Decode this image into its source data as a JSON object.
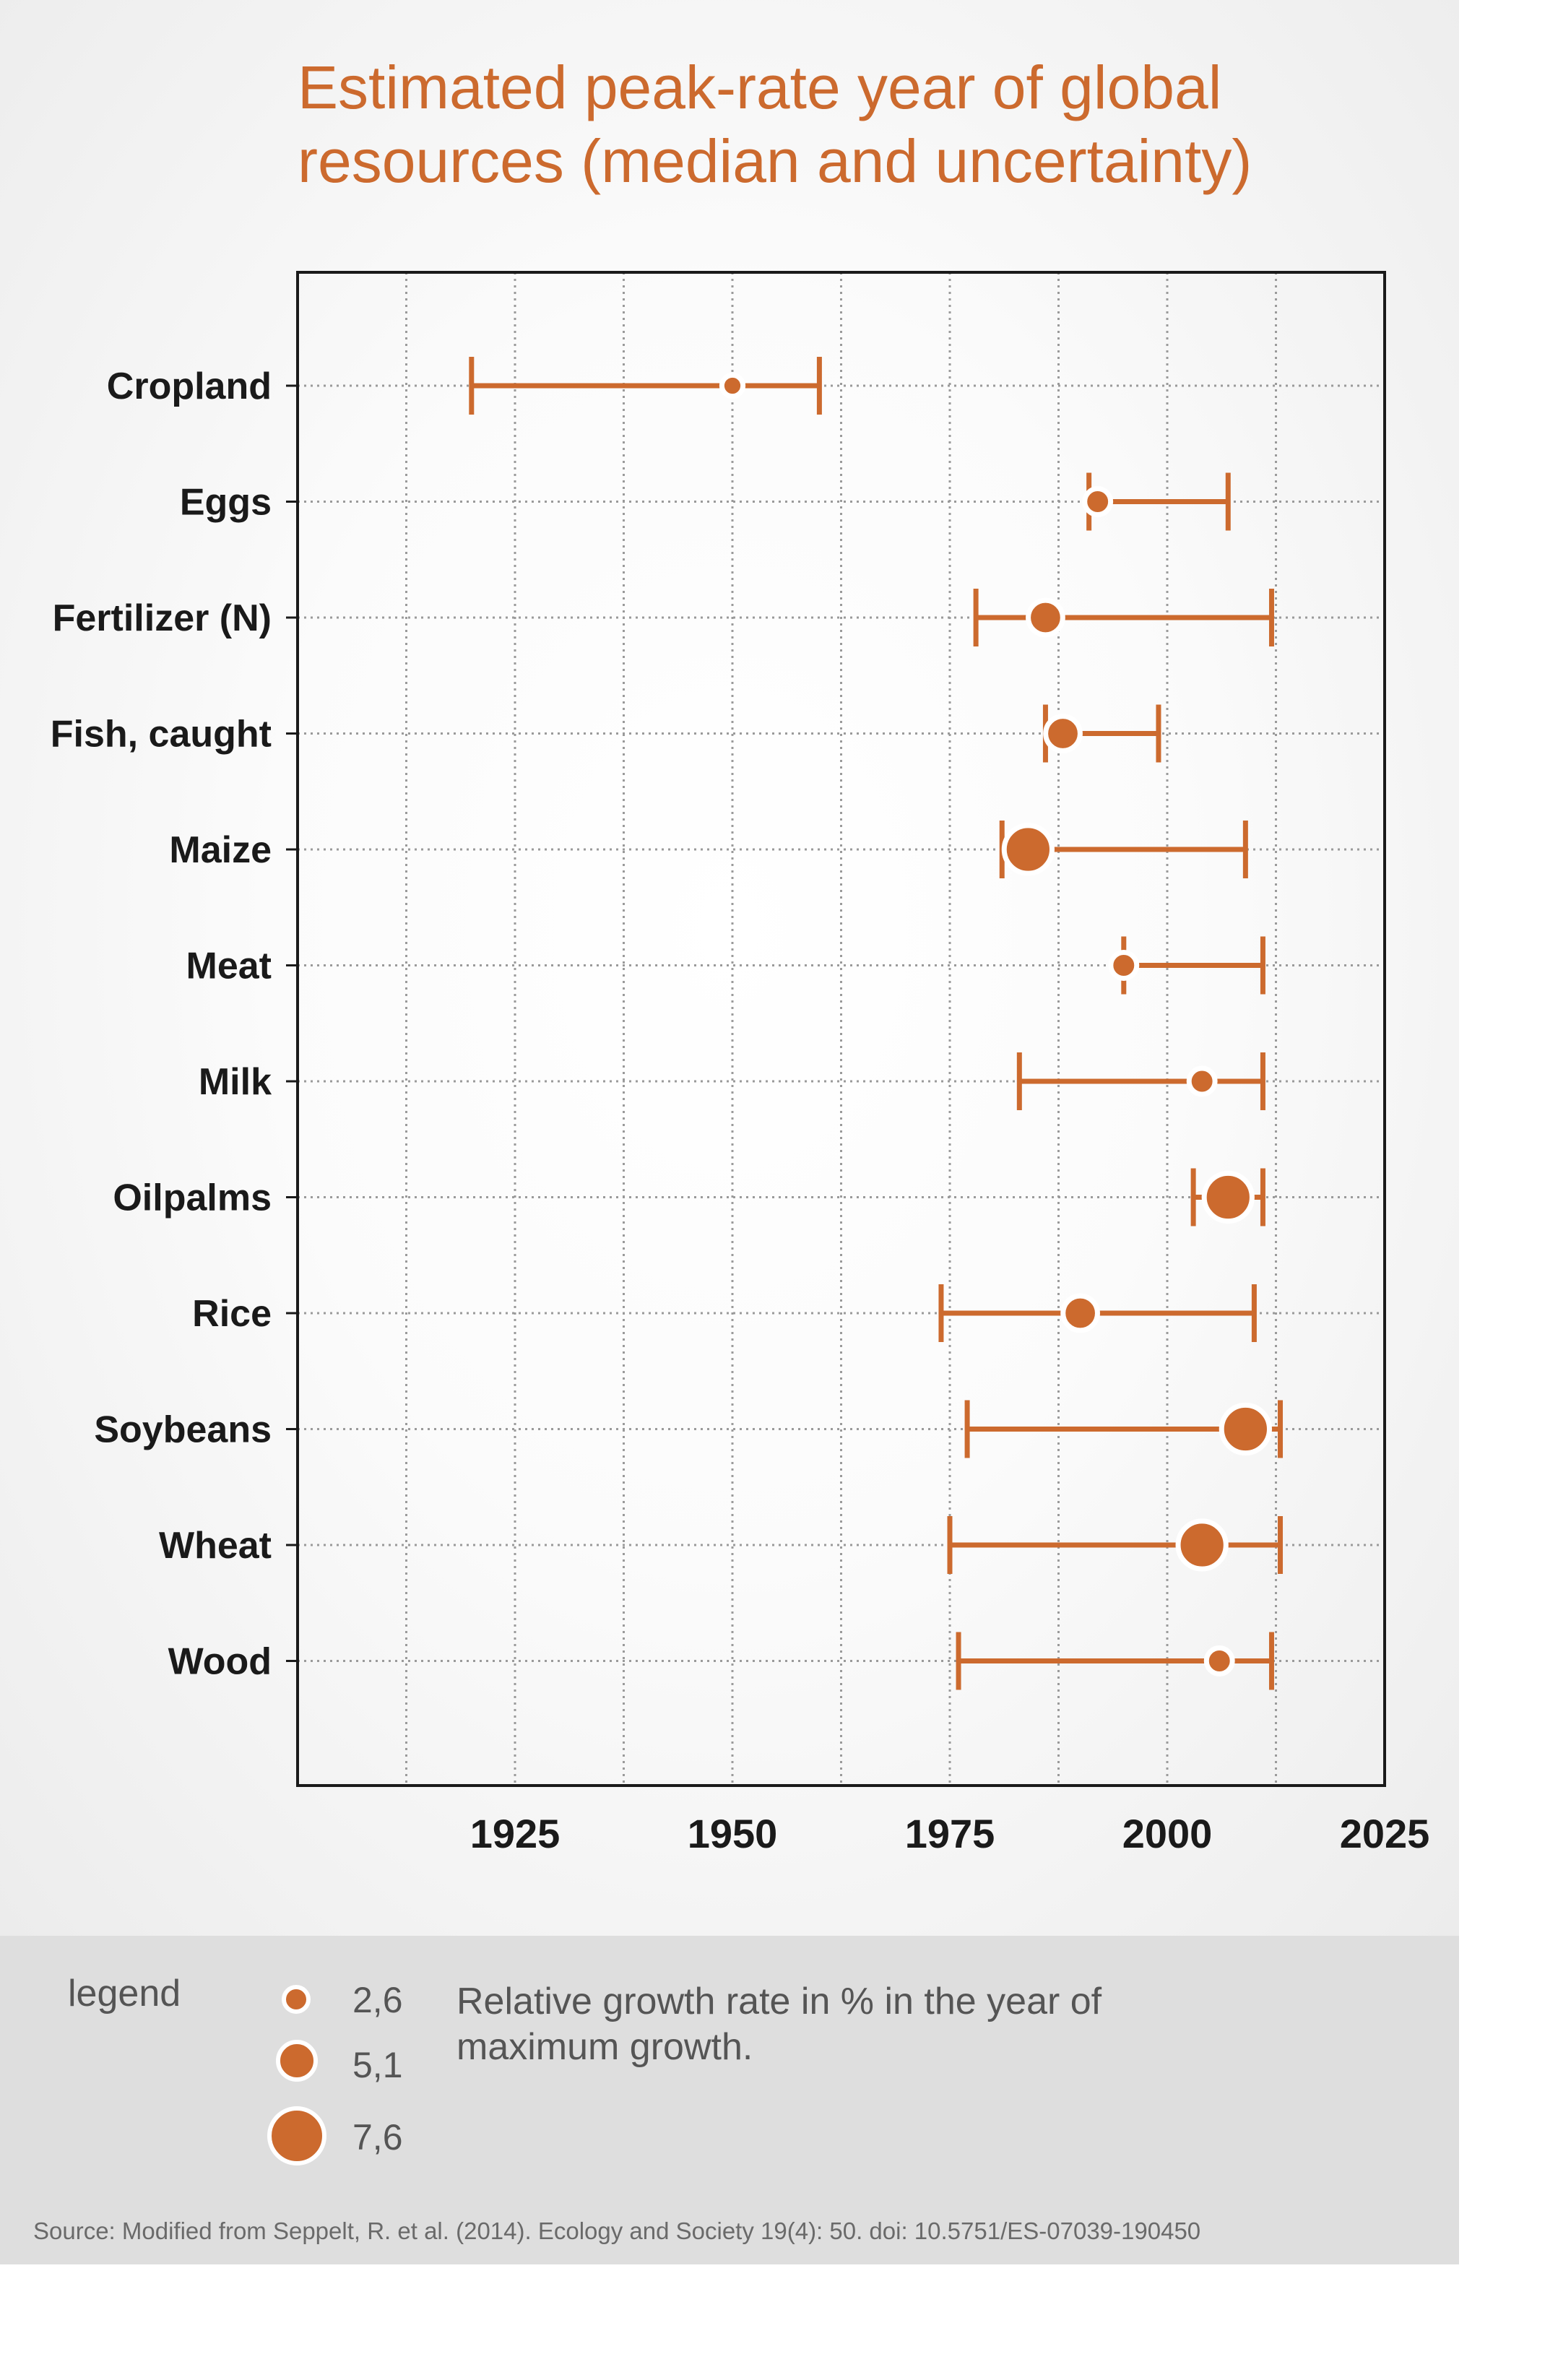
{
  "title": "Estimated peak-rate year of global resources (median and uncertainty)",
  "chart_data": {
    "type": "scatter",
    "title": "Estimated peak-rate year of global resources (median and uncertainty)",
    "xlabel": "",
    "ylabel": "",
    "xlim": [
      1900,
      2025
    ],
    "x_ticks": [
      1925,
      1950,
      1975,
      2000,
      2025
    ],
    "x_tick_labels": [
      "1925",
      "1950",
      "1975",
      "2000",
      "2025"
    ],
    "x_minor_grid": [
      1912.5,
      1925,
      1937.5,
      1950,
      1962.5,
      1975,
      1987.5,
      2000,
      2012.5
    ],
    "grid": true,
    "color": "#cc6a2e",
    "categories": [
      "Cropland",
      "Eggs",
      "Fertilizer (N)",
      "Fish, caught",
      "Maize",
      "Meat",
      "Milk",
      "Oilpalms",
      "Rice",
      "Soybeans",
      "Wheat",
      "Wood"
    ],
    "median": [
      1950,
      1992,
      1986,
      1988,
      1984,
      1995,
      2004,
      2007,
      1990,
      2009,
      2004,
      2006
    ],
    "lower": [
      1920,
      1991,
      1978,
      1986,
      1981,
      1995,
      1983,
      2003,
      1974,
      1977,
      1975,
      1976
    ],
    "upper": [
      1960,
      2007,
      2012,
      1999,
      2009,
      2011,
      2011,
      2011,
      2010,
      2013,
      2013,
      2012
    ],
    "growth_rate": [
      2.6,
      3.5,
      5.1,
      5.1,
      7.6,
      3.5,
      3.5,
      7.6,
      5.1,
      7.6,
      7.6,
      3.5
    ]
  },
  "legend": {
    "title": "legend",
    "items": [
      {
        "label": "2,6",
        "value": 2.6
      },
      {
        "label": "5,1",
        "value": 5.1
      },
      {
        "label": "7,6",
        "value": 7.6
      }
    ],
    "description": "Relative growth rate in % in the year of maximum growth."
  },
  "source": "Source: Modified from Seppelt, R. et al. (2014). Ecology and Society 19(4): 50. doi: 10.5751/ES-07039-190450"
}
